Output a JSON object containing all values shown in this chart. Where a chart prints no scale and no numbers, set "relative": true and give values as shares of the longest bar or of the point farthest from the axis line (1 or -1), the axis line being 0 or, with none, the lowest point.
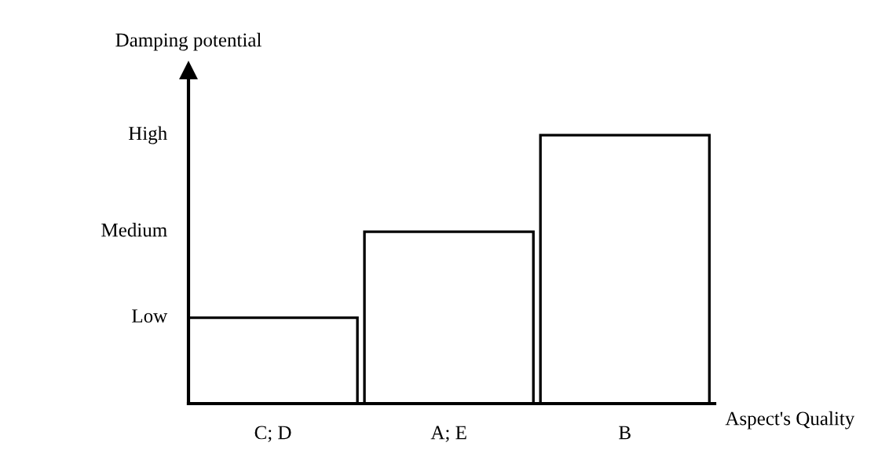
{
  "chart_data": {
    "type": "bar",
    "ylabel": "Damping potential",
    "xlabel": "Aspect's Quality",
    "relative": true,
    "categories": [
      "C; D",
      "A; E",
      "B"
    ],
    "values": [
      0.32,
      0.64,
      1
    ],
    "color": "#ffffff",
    "annotations": [
      "Low",
      "Medium",
      "High"
    ]
  }
}
